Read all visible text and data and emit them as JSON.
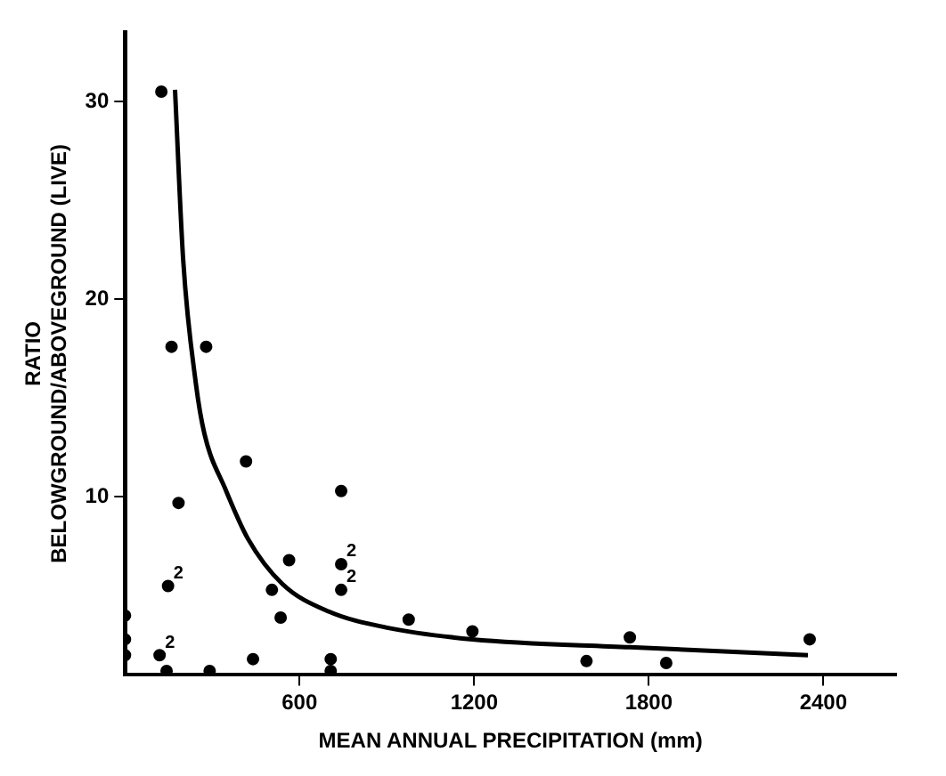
{
  "chart_data": {
    "type": "scatter",
    "xlabel": "MEAN ANNUAL PRECIPITATION (mm)",
    "ylabel": "RATIO\nBELOWGROUND/ABOVEGROUND (LIVE)",
    "xlim": [
      0,
      2650
    ],
    "xticks": [
      600,
      1200,
      1800,
      2400
    ],
    "ylim": [
      1,
      33.5
    ],
    "yticks": [
      10,
      20,
      30
    ],
    "grid": false,
    "legend": false,
    "marker": "circle",
    "series": [
      {
        "color": "#000000",
        "x": [
          125,
          160,
          279,
          416,
          184,
          743,
          148,
          564,
          505,
          535,
          743,
          743,
          975,
          0,
          0,
          0,
          119,
          440,
          707,
          143,
          291,
          707,
          1194,
          1735,
          2353,
          1586,
          1860
        ],
        "values": [
          30.5,
          17.6,
          17.6,
          11.8,
          9.7,
          10.3,
          5.5,
          6.8,
          5.3,
          3.9,
          6.6,
          5.3,
          3.8,
          4.0,
          2.8,
          2.0,
          2.0,
          1.8,
          1.8,
          1.2,
          1.2,
          1.2,
          3.2,
          2.9,
          2.8,
          1.7,
          1.6
        ]
      },
      {
        "type": "line",
        "color": "#000000",
        "marker": "none",
        "line_style": "solid",
        "x": [
          172,
          200,
          244,
          273,
          345,
          422,
          541,
          701,
          897,
          1194,
          1735,
          2347
        ],
        "values": [
          30.6,
          22,
          15.7,
          13.2,
          10.4,
          7.9,
          5.6,
          4.2,
          3.4,
          2.8,
          2.4,
          2.0
        ]
      }
    ],
    "annotations": [
      {
        "text": "2",
        "x": 743,
        "y": 6.6
      },
      {
        "text": "2",
        "x": 743,
        "y": 5.3
      },
      {
        "text": "2",
        "x": 119,
        "y": 2.0
      },
      {
        "text": "2",
        "x": 148,
        "y": 5.5
      }
    ]
  }
}
